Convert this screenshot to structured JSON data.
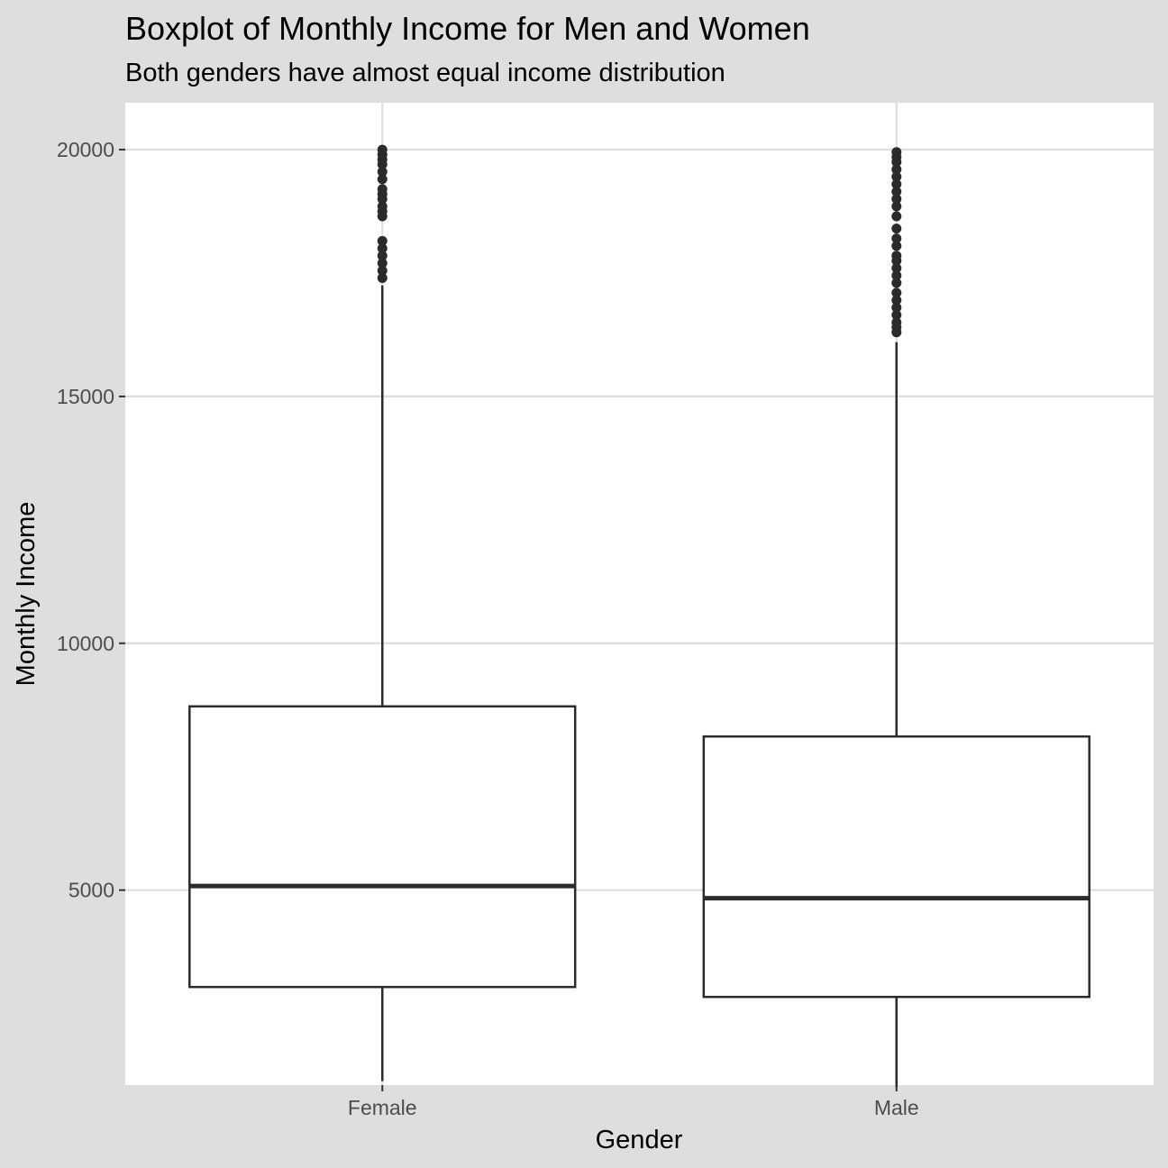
{
  "chart_data": {
    "type": "boxplot",
    "title": "Boxplot of Monthly Income for Men and Women",
    "subtitle": "Both genders have almost equal income distribution",
    "xlabel": "Gender",
    "ylabel": "Monthly Income",
    "ylim": [
      1050,
      20950
    ],
    "yticks": [
      5000,
      10000,
      15000,
      20000
    ],
    "ytick_labels": [
      "5000",
      "10000",
      "15000",
      "20000"
    ],
    "grid": true,
    "categories": [
      "Female",
      "Male"
    ],
    "boxes": [
      {
        "name": "Female",
        "whisker_low": 1129,
        "q1": 3037,
        "median": 5082,
        "q3": 8722,
        "whisker_high": 17250,
        "outliers": [
          17400,
          17550,
          17700,
          17850,
          18000,
          18150,
          18650,
          18750,
          18850,
          19000,
          19100,
          19200,
          19400,
          19550,
          19700,
          19800,
          19900,
          19999
        ]
      },
      {
        "name": "Male",
        "whisker_low": 1009,
        "q1": 2836,
        "median": 4837,
        "q3": 8112,
        "whisker_high": 16100,
        "outliers": [
          16300,
          16400,
          16500,
          16650,
          16800,
          16950,
          17100,
          17300,
          17450,
          17600,
          17750,
          17850,
          18050,
          18200,
          18400,
          18650,
          18850,
          19000,
          19150,
          19300,
          19450,
          19600,
          19750,
          19850,
          19950
        ]
      }
    ],
    "colors": {
      "background": "#dedede",
      "panel": "#ffffff",
      "grid": "#dedede",
      "box_stroke": "#2b2b2b",
      "outlier": "#2b2b2b",
      "tick_text": "#4d4d4d"
    }
  }
}
